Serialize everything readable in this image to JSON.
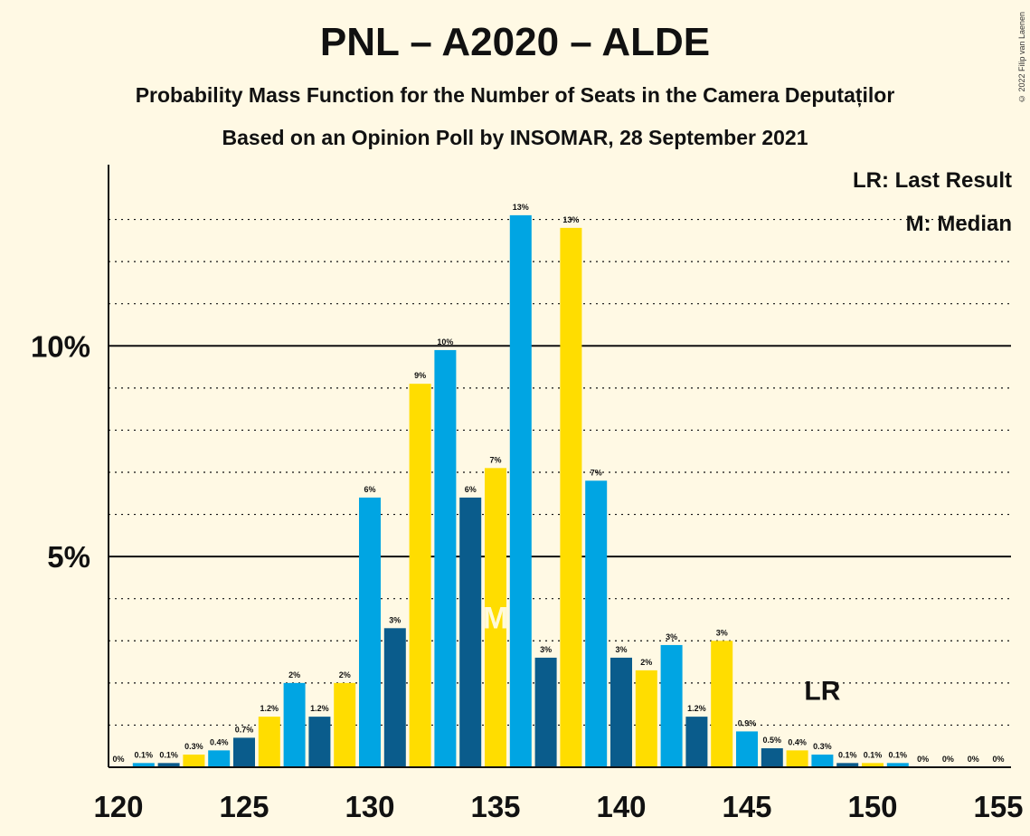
{
  "header": {
    "title": "PNL – A2020 – ALDE",
    "subtitle1": "Probability Mass Function for the Number of Seats in the Camera Deputaților",
    "subtitle2": "Based on an Opinion Poll by INSOMAR, 28 September 2021",
    "copyright": "© 2022 Filip van Laenen"
  },
  "legend": {
    "lr": "LR: Last Result",
    "median": "M: Median"
  },
  "colors": {
    "background": "#fff9e4",
    "pnl": "#00a5e3",
    "alde": "#ffdd00",
    "a2020": "#0a5c8c"
  },
  "chart_data": {
    "type": "bar",
    "title": "PNL – A2020 – ALDE",
    "x": [
      120,
      121,
      122,
      123,
      124,
      125,
      126,
      127,
      128,
      129,
      130,
      131,
      132,
      133,
      134,
      135,
      136,
      137,
      138,
      139,
      140,
      141,
      142,
      143,
      144,
      145,
      146,
      147,
      148,
      149,
      150,
      151,
      152,
      153,
      154,
      155
    ],
    "values": [
      0,
      0.1,
      0.1,
      0.3,
      0.4,
      0.7,
      1.2,
      2.0,
      1.2,
      2.0,
      6.4,
      3.3,
      9.1,
      9.9,
      6.4,
      7.1,
      13.1,
      2.6,
      12.8,
      6.8,
      2.6,
      2.3,
      2.9,
      1.2,
      3.0,
      0.85,
      0.45,
      0.4,
      0.3,
      0.1,
      0.1,
      0.1,
      0,
      0,
      0,
      0
    ],
    "labels": [
      "0%",
      "0.1%",
      "0.1%",
      "0.3%",
      "0.4%",
      "0.7%",
      "1.2%",
      "2%",
      "1.2%",
      "2%",
      "6%",
      "3%",
      "9%",
      "10%",
      "6%",
      "7%",
      "13%",
      "3%",
      "13%",
      "7%",
      "3%",
      "2%",
      "3%",
      "1.2%",
      "3%",
      "0.9%",
      "0.5%",
      "0.4%",
      "0.3%",
      "0.1%",
      "0.1%",
      "0.1%",
      "0%",
      "0%",
      "0%",
      "0%"
    ],
    "bar_colors": [
      "#00a5e3",
      "#00a5e3",
      "#0a5c8c",
      "#ffdd00",
      "#00a5e3",
      "#0a5c8c",
      "#ffdd00",
      "#00a5e3",
      "#0a5c8c",
      "#ffdd00",
      "#00a5e3",
      "#0a5c8c",
      "#ffdd00",
      "#00a5e3",
      "#0a5c8c",
      "#ffdd00",
      "#00a5e3",
      "#0a5c8c",
      "#ffdd00",
      "#00a5e3",
      "#0a5c8c",
      "#ffdd00",
      "#00a5e3",
      "#0a5c8c",
      "#ffdd00",
      "#00a5e3",
      "#0a5c8c",
      "#ffdd00",
      "#00a5e3",
      "#0a5c8c",
      "#ffdd00",
      "#00a5e3",
      "#0a5c8c",
      "#ffdd00",
      "#00a5e3",
      "#0a5c8c"
    ],
    "x_ticks": [
      120,
      125,
      130,
      135,
      140,
      145,
      150,
      155
    ],
    "x_tick_labels": [
      "120",
      "125",
      "130",
      "135",
      "140",
      "145",
      "150",
      "155"
    ],
    "y_ticks": [
      5,
      10
    ],
    "y_tick_labels": [
      "5%",
      "10%"
    ],
    "ylim": [
      0,
      14.3
    ],
    "xlim": [
      120,
      155
    ],
    "median_seat": 135,
    "median_marker": "M",
    "last_result_seat": 148,
    "last_result_marker": "LR",
    "grid": "dotted lines every 1%, solid at 5% and 10%"
  }
}
